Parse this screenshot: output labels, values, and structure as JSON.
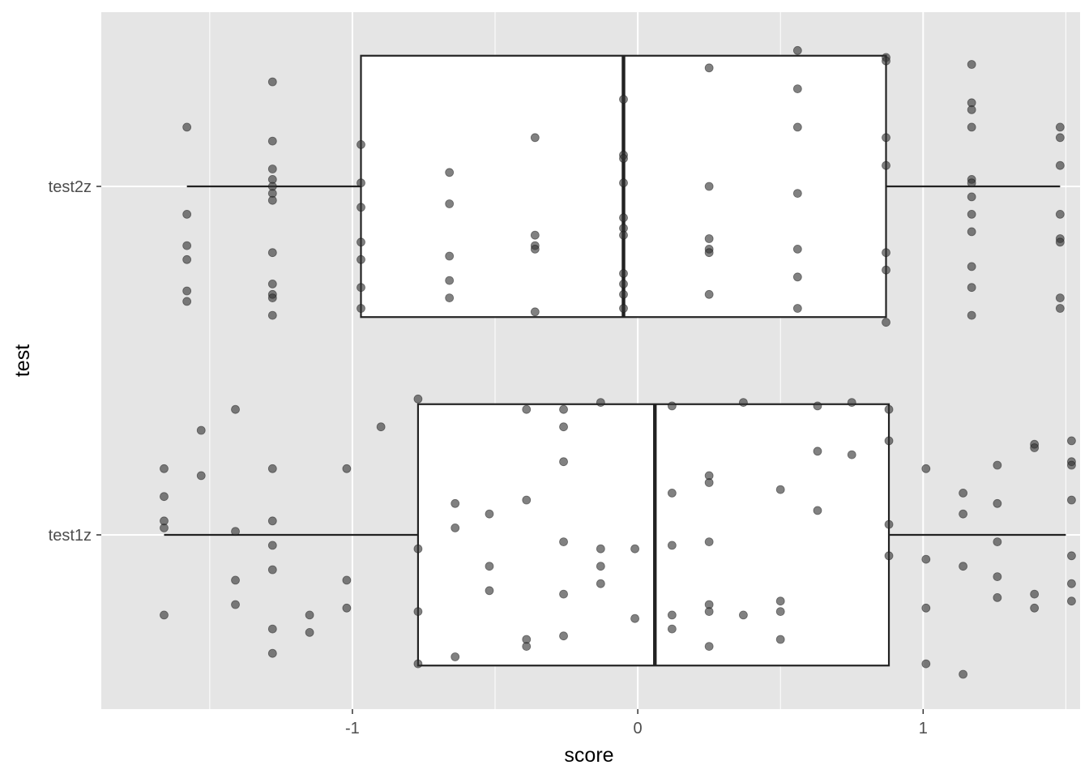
{
  "chart_data": {
    "type": "boxplot",
    "title": "",
    "xlabel": "score",
    "ylabel": "test",
    "xlim": [
      -1.88,
      1.55
    ],
    "xticks": [
      -1,
      0,
      1
    ],
    "xtick_labels": [
      "-1",
      "0",
      "1"
    ],
    "categories": [
      "test1z",
      "test2z"
    ],
    "grid": true,
    "colors": {
      "panel_background": "#e5e5e5",
      "grid_line": "#ffffff",
      "box_fill": "#ffffff",
      "box_stroke": "#222222",
      "point_fill": "#333333",
      "tick_text": "#4d4d4d",
      "axis_title": "#000000"
    },
    "series": [
      {
        "category": "test1z",
        "box": {
          "min": -1.66,
          "q1": -0.77,
          "median": 0.06,
          "q3": 0.88,
          "max": 1.5
        },
        "points": [
          [
            -1.66,
            -0.23
          ],
          [
            -1.66,
            0.02
          ],
          [
            -1.66,
            0.04
          ],
          [
            -1.66,
            0.11
          ],
          [
            -1.66,
            0.19
          ],
          [
            -1.53,
            0.3
          ],
          [
            -1.53,
            0.17
          ],
          [
            -1.41,
            0.36
          ],
          [
            -1.41,
            0.01
          ],
          [
            -1.41,
            -0.13
          ],
          [
            -1.41,
            -0.2
          ],
          [
            -1.28,
            0.19
          ],
          [
            -1.28,
            0.04
          ],
          [
            -1.28,
            -0.03
          ],
          [
            -1.28,
            -0.1
          ],
          [
            -1.28,
            -0.27
          ],
          [
            -1.28,
            -0.34
          ],
          [
            -1.15,
            -0.23
          ],
          [
            -1.15,
            -0.28
          ],
          [
            -1.02,
            0.19
          ],
          [
            -1.02,
            -0.13
          ],
          [
            -1.02,
            -0.21
          ],
          [
            -0.9,
            0.31
          ],
          [
            -0.77,
            0.39
          ],
          [
            -0.77,
            -0.04
          ],
          [
            -0.77,
            -0.22
          ],
          [
            -0.77,
            -0.37
          ],
          [
            -0.64,
            0.09
          ],
          [
            -0.64,
            0.02
          ],
          [
            -0.64,
            -0.35
          ],
          [
            -0.52,
            0.06
          ],
          [
            -0.52,
            -0.09
          ],
          [
            -0.52,
            -0.16
          ],
          [
            -0.39,
            0.36
          ],
          [
            -0.39,
            0.1
          ],
          [
            -0.39,
            -0.3
          ],
          [
            -0.39,
            -0.32
          ],
          [
            -0.26,
            0.36
          ],
          [
            -0.26,
            0.31
          ],
          [
            -0.26,
            0.21
          ],
          [
            -0.26,
            -0.02
          ],
          [
            -0.26,
            -0.17
          ],
          [
            -0.26,
            -0.29
          ],
          [
            -0.13,
            0.38
          ],
          [
            -0.13,
            -0.04
          ],
          [
            -0.13,
            -0.09
          ],
          [
            -0.13,
            -0.14
          ],
          [
            -0.01,
            -0.04
          ],
          [
            -0.01,
            -0.24
          ],
          [
            0.12,
            0.37
          ],
          [
            0.12,
            0.12
          ],
          [
            0.12,
            -0.03
          ],
          [
            0.12,
            -0.23
          ],
          [
            0.12,
            -0.27
          ],
          [
            0.25,
            0.17
          ],
          [
            0.25,
            0.15
          ],
          [
            0.25,
            -0.02
          ],
          [
            0.25,
            -0.2
          ],
          [
            0.25,
            -0.22
          ],
          [
            0.25,
            -0.32
          ],
          [
            0.37,
            0.38
          ],
          [
            0.37,
            -0.23
          ],
          [
            0.5,
            0.13
          ],
          [
            0.5,
            -0.19
          ],
          [
            0.5,
            -0.22
          ],
          [
            0.5,
            -0.3
          ],
          [
            0.63,
            0.37
          ],
          [
            0.63,
            0.24
          ],
          [
            0.63,
            0.07
          ],
          [
            0.75,
            0.38
          ],
          [
            0.75,
            0.23
          ],
          [
            0.88,
            0.36
          ],
          [
            0.88,
            0.27
          ],
          [
            0.88,
            0.03
          ],
          [
            0.88,
            -0.06
          ],
          [
            1.01,
            0.19
          ],
          [
            1.01,
            -0.07
          ],
          [
            1.01,
            -0.21
          ],
          [
            1.01,
            -0.37
          ],
          [
            1.14,
            0.12
          ],
          [
            1.14,
            0.06
          ],
          [
            1.14,
            -0.09
          ],
          [
            1.14,
            -0.4
          ],
          [
            1.26,
            0.2
          ],
          [
            1.26,
            0.09
          ],
          [
            1.26,
            -0.02
          ],
          [
            1.26,
            -0.12
          ],
          [
            1.26,
            -0.18
          ],
          [
            1.39,
            0.26
          ],
          [
            1.39,
            0.25
          ],
          [
            1.39,
            -0.17
          ],
          [
            1.39,
            -0.21
          ],
          [
            1.52,
            0.27
          ],
          [
            1.52,
            0.21
          ],
          [
            1.52,
            0.2
          ],
          [
            1.52,
            0.1
          ],
          [
            1.52,
            -0.06
          ],
          [
            1.52,
            -0.14
          ],
          [
            1.52,
            -0.19
          ]
        ]
      },
      {
        "category": "test2z",
        "box": {
          "min": -1.58,
          "q1": -0.97,
          "median": -0.05,
          "q3": 0.87,
          "max": 1.48
        },
        "points": [
          [
            -1.58,
            0.17
          ],
          [
            -1.58,
            -0.08
          ],
          [
            -1.58,
            -0.17
          ],
          [
            -1.58,
            -0.21
          ],
          [
            -1.58,
            -0.3
          ],
          [
            -1.58,
            -0.33
          ],
          [
            -1.28,
            0.3
          ],
          [
            -1.28,
            0.13
          ],
          [
            -1.28,
            0.05
          ],
          [
            -1.28,
            0.02
          ],
          [
            -1.28,
            0.0
          ],
          [
            -1.28,
            -0.02
          ],
          [
            -1.28,
            -0.04
          ],
          [
            -1.28,
            -0.19
          ],
          [
            -1.28,
            -0.28
          ],
          [
            -1.28,
            -0.31
          ],
          [
            -1.28,
            -0.32
          ],
          [
            -1.28,
            -0.37
          ],
          [
            -0.97,
            0.12
          ],
          [
            -0.97,
            0.01
          ],
          [
            -0.97,
            -0.06
          ],
          [
            -0.97,
            -0.16
          ],
          [
            -0.97,
            -0.21
          ],
          [
            -0.97,
            -0.29
          ],
          [
            -0.97,
            -0.35
          ],
          [
            -0.66,
            0.04
          ],
          [
            -0.66,
            -0.05
          ],
          [
            -0.66,
            -0.2
          ],
          [
            -0.66,
            -0.27
          ],
          [
            -0.66,
            -0.32
          ],
          [
            -0.36,
            0.14
          ],
          [
            -0.36,
            -0.14
          ],
          [
            -0.36,
            -0.17
          ],
          [
            -0.36,
            -0.18
          ],
          [
            -0.36,
            -0.36
          ],
          [
            -0.05,
            0.25
          ],
          [
            -0.05,
            0.09
          ],
          [
            -0.05,
            0.08
          ],
          [
            -0.05,
            0.01
          ],
          [
            -0.05,
            -0.09
          ],
          [
            -0.05,
            -0.12
          ],
          [
            -0.05,
            -0.14
          ],
          [
            -0.05,
            -0.25
          ],
          [
            -0.05,
            -0.28
          ],
          [
            -0.05,
            -0.31
          ],
          [
            -0.05,
            -0.35
          ],
          [
            0.25,
            0.34
          ],
          [
            0.25,
            0.0
          ],
          [
            0.25,
            -0.15
          ],
          [
            0.25,
            -0.18
          ],
          [
            0.25,
            -0.19
          ],
          [
            0.25,
            -0.31
          ],
          [
            0.56,
            0.39
          ],
          [
            0.56,
            0.28
          ],
          [
            0.56,
            0.17
          ],
          [
            0.56,
            -0.02
          ],
          [
            0.56,
            -0.18
          ],
          [
            0.56,
            -0.26
          ],
          [
            0.56,
            -0.35
          ],
          [
            0.87,
            0.37
          ],
          [
            0.87,
            0.36
          ],
          [
            0.87,
            0.14
          ],
          [
            0.87,
            0.06
          ],
          [
            0.87,
            -0.19
          ],
          [
            0.87,
            -0.24
          ],
          [
            0.87,
            -0.39
          ],
          [
            1.17,
            0.35
          ],
          [
            1.17,
            0.24
          ],
          [
            1.17,
            0.22
          ],
          [
            1.17,
            0.17
          ],
          [
            1.17,
            0.02
          ],
          [
            1.17,
            0.01
          ],
          [
            1.17,
            -0.03
          ],
          [
            1.17,
            -0.08
          ],
          [
            1.17,
            -0.13
          ],
          [
            1.17,
            -0.23
          ],
          [
            1.17,
            -0.29
          ],
          [
            1.17,
            -0.37
          ],
          [
            1.48,
            0.17
          ],
          [
            1.48,
            0.14
          ],
          [
            1.48,
            0.06
          ],
          [
            1.48,
            -0.08
          ],
          [
            1.48,
            -0.15
          ],
          [
            1.48,
            -0.16
          ],
          [
            1.48,
            -0.32
          ],
          [
            1.48,
            -0.35
          ]
        ]
      }
    ]
  }
}
